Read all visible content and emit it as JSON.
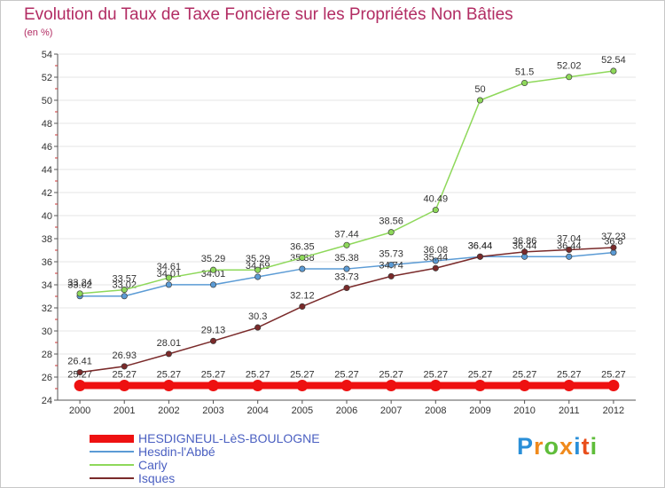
{
  "title": "Evolution du Taux de Taxe Foncière sur les Propriétés Non Bâties",
  "subtitle": "(en %)",
  "logo": {
    "text": "Proxiti",
    "colors": [
      "#2a8fd8",
      "#f08a1c",
      "#5fbd3a",
      "#f08a1c",
      "#2a8fd8",
      "#e94e1b",
      "#5fbd3a"
    ]
  },
  "chart_data": {
    "type": "line",
    "title": "Evolution du Taux de Taxe Foncière sur les Propriétés Non Bâties",
    "ylabel": "(en %)",
    "xlabel": "",
    "x": [
      "2000",
      "2001",
      "2002",
      "2003",
      "2004",
      "2005",
      "2006",
      "2007",
      "2008",
      "2009",
      "2010",
      "2011",
      "2012"
    ],
    "ylim": [
      24,
      54
    ],
    "yticks": [
      24,
      26,
      28,
      30,
      32,
      34,
      36,
      38,
      40,
      42,
      44,
      46,
      48,
      50,
      52,
      54
    ],
    "grid": true,
    "series": [
      {
        "name": "HESDIGNEUL-LèS-BOULOGNE",
        "color": "#ee1111",
        "values": [
          25.27,
          25.27,
          25.27,
          25.27,
          25.27,
          25.27,
          25.27,
          25.27,
          25.27,
          25.27,
          25.27,
          25.27,
          25.27
        ],
        "labels": [
          "25.27",
          "25.27",
          "25.27",
          "25.27",
          "25.27",
          "25.27",
          "25.27",
          "25.27",
          "25.27",
          "25.27",
          "25.27",
          "25.27",
          "25.27"
        ]
      },
      {
        "name": "Hesdin-l'Abbé",
        "color": "#5b9bd5",
        "values": [
          33.02,
          33.02,
          34.01,
          34.01,
          34.69,
          35.38,
          35.38,
          35.73,
          36.08,
          36.44,
          36.44,
          36.44,
          36.8
        ],
        "labels": [
          "33.02",
          "33.02",
          "34.01",
          "34.01",
          "34.69",
          "35.38",
          "35.38",
          "35.73",
          "36.08",
          "36.44",
          "36.44",
          "36.44",
          "36.8"
        ]
      },
      {
        "name": "Carly",
        "color": "#8ed85a",
        "values": [
          33.24,
          33.57,
          34.61,
          35.29,
          35.29,
          36.35,
          37.44,
          38.56,
          40.49,
          50,
          51.5,
          52.02,
          52.54
        ],
        "labels": [
          "33.24",
          "33.57",
          "34.61",
          "35.29",
          "35.29",
          "36.35",
          "37.44",
          "38.56",
          "40.49",
          "50",
          "51.5",
          "52.02",
          "52.54"
        ]
      },
      {
        "name": "Isques",
        "color": "#7a2a2a",
        "values": [
          26.41,
          26.93,
          28.01,
          29.13,
          30.3,
          32.12,
          33.73,
          34.74,
          35.44,
          36.44,
          36.86,
          37.04,
          37.23
        ],
        "labels": [
          "26.41",
          "26.93",
          "28.01",
          "29.13",
          "30.3",
          "32.12",
          "33.73",
          "34.74",
          "35.44",
          "36.44",
          "36.86",
          "37.04",
          "37.23"
        ]
      }
    ],
    "legend": [
      "HESDIGNEUL-LèS-BOULOGNE",
      "Hesdin-l'Abbé",
      "Carly",
      "Isques"
    ]
  }
}
